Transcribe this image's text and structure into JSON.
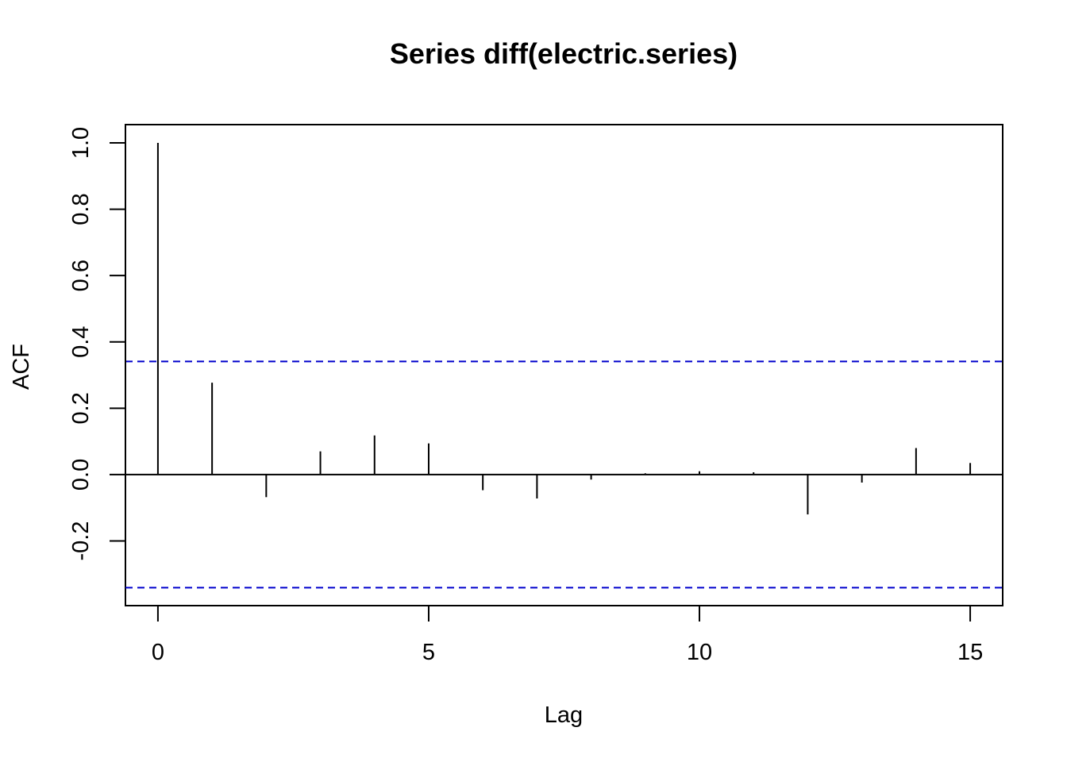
{
  "chart_data": {
    "type": "bar",
    "title": "Series  diff(electric.series)",
    "xlabel": "Lag",
    "ylabel": "ACF",
    "x": [
      0,
      1,
      2,
      3,
      4,
      5,
      6,
      7,
      8,
      9,
      10,
      11,
      12,
      13,
      14,
      15
    ],
    "values": [
      1.0,
      0.277,
      -0.068,
      0.07,
      0.118,
      0.094,
      -0.047,
      -0.072,
      -0.015,
      0.004,
      0.01,
      0.007,
      -0.12,
      -0.024,
      0.08,
      0.035
    ],
    "xlim": [
      -0.6,
      15.6
    ],
    "ylim": [
      -0.395,
      1.055
    ],
    "x_ticks": [
      "0",
      "5",
      "10",
      "15"
    ],
    "x_tick_values": [
      0,
      5,
      10,
      15
    ],
    "y_ticks": [
      "-0.2",
      "0.0",
      "0.2",
      "0.4",
      "0.6",
      "0.8",
      "1.0"
    ],
    "y_tick_values": [
      -0.2,
      0.0,
      0.2,
      0.4,
      0.6,
      0.8,
      1.0
    ],
    "confidence_bounds": [
      0.341,
      -0.341
    ],
    "confidence_color": "#0000cc",
    "bar_color": "#000000",
    "grid": false
  }
}
